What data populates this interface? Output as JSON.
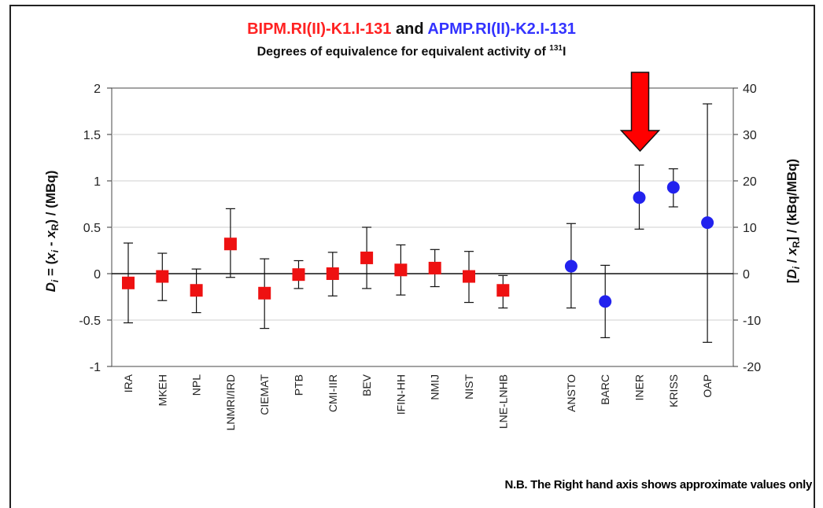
{
  "title": {
    "part1": "BIPM.RI(II)-K1.I-131",
    "joiner": " and ",
    "part2": "APMP.RI(II)-K2.I-131",
    "color1": "#ff2222",
    "color_joiner": "#111111",
    "color2": "#3333ff"
  },
  "subtitle": {
    "prefix": "Degrees of equivalence for equivalent activity of ",
    "sup": "131",
    "suffix": "I"
  },
  "note": "N.B. The Right hand axis shows approximate values only",
  "chart_data": {
    "type": "scatter",
    "title": "BIPM.RI(II)-K1.I-131 and APMP.RI(II)-K2.I-131",
    "subtitle": "Degrees of equivalence for equivalent activity of 131I",
    "ylabel": "D_i = (x_i - x_R) / (MBq)",
    "ylabel_right": "[D_i / x_R] / (kBq/MBq)",
    "ylim": [
      -1,
      2
    ],
    "ylim_right": [
      -20,
      40
    ],
    "yticks": [
      "-1",
      "-0.5",
      "0",
      "0.5",
      "1",
      "1.5",
      "2"
    ],
    "yticks_right": [
      "-20",
      "-10",
      "0",
      "10",
      "20",
      "30",
      "40"
    ],
    "grid": true,
    "categories": [
      "IRA",
      "MKEH",
      "NPL",
      "LNMRI/IRD",
      "CIEMAT",
      "PTB",
      "CMI-IIR",
      "BEV",
      "IFIN-HH",
      "NMIJ",
      "NIST",
      "LNE-LNHB",
      "",
      "ANSTO",
      "BARC",
      "INER",
      "KRISS",
      "OAP"
    ],
    "series": [
      {
        "name": "BIPM.RI(II)-K1.I-131",
        "marker": "square",
        "color": "#ee1111",
        "points": [
          {
            "cat": "IRA",
            "y": -0.1,
            "lo": -0.53,
            "hi": 0.33
          },
          {
            "cat": "MKEH",
            "y": -0.03,
            "lo": -0.29,
            "hi": 0.22
          },
          {
            "cat": "NPL",
            "y": -0.18,
            "lo": -0.42,
            "hi": 0.05
          },
          {
            "cat": "LNMRI/IRD",
            "y": 0.32,
            "lo": -0.04,
            "hi": 0.7
          },
          {
            "cat": "CIEMAT",
            "y": -0.21,
            "lo": -0.59,
            "hi": 0.16
          },
          {
            "cat": "PTB",
            "y": -0.01,
            "lo": -0.16,
            "hi": 0.14
          },
          {
            "cat": "CMI-IIR",
            "y": 0.0,
            "lo": -0.24,
            "hi": 0.23
          },
          {
            "cat": "BEV",
            "y": 0.17,
            "lo": -0.16,
            "hi": 0.5
          },
          {
            "cat": "IFIN-HH",
            "y": 0.04,
            "lo": -0.23,
            "hi": 0.31
          },
          {
            "cat": "NMIJ",
            "y": 0.06,
            "lo": -0.14,
            "hi": 0.26
          },
          {
            "cat": "NIST",
            "y": -0.03,
            "lo": -0.31,
            "hi": 0.24
          },
          {
            "cat": "LNE-LNHB",
            "y": -0.18,
            "lo": -0.37,
            "hi": -0.02
          }
        ]
      },
      {
        "name": "APMP.RI(II)-K2.I-131",
        "marker": "circle",
        "color": "#2222ee",
        "points": [
          {
            "cat": "ANSTO",
            "y": 0.08,
            "lo": -0.37,
            "hi": 0.54
          },
          {
            "cat": "BARC",
            "y": -0.3,
            "lo": -0.69,
            "hi": 0.09
          },
          {
            "cat": "INER",
            "y": 0.82,
            "lo": 0.48,
            "hi": 1.17
          },
          {
            "cat": "KRISS",
            "y": 0.93,
            "lo": 0.72,
            "hi": 1.13
          },
          {
            "cat": "OAP",
            "y": 0.55,
            "lo": -0.74,
            "hi": 1.83
          }
        ]
      }
    ],
    "annotations": [
      {
        "type": "arrow",
        "direction": "down",
        "points_to": "INER",
        "color": "#ff0000"
      }
    ]
  }
}
